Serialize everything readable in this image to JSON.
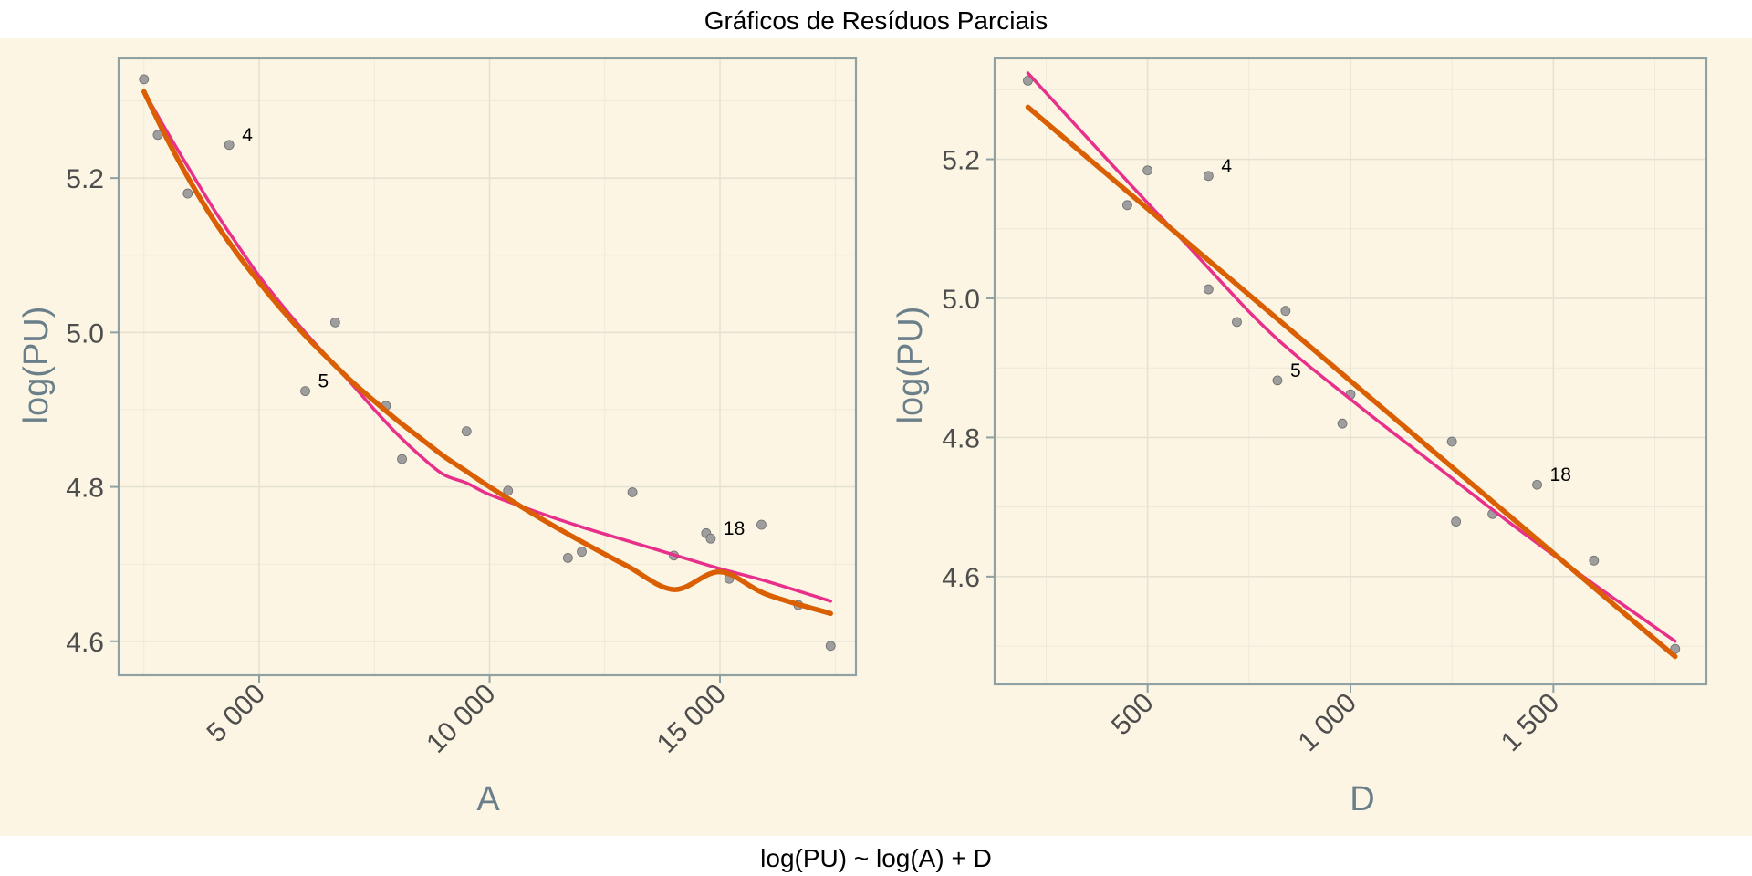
{
  "figure": {
    "title": "Gráficos de Resíduos Parciais",
    "caption": "log(PU) ~ log(A) + D",
    "background_color": "#fcf5e3",
    "point_color": "#9e9e9e",
    "series_colors": {
      "loess": "#e8308a",
      "fitted": "#d95f02"
    }
  },
  "chart_data": [
    {
      "type": "scatter",
      "title": "",
      "xlabel": "A",
      "ylabel": "log(PU)",
      "xlim": [
        1950,
        17950
      ],
      "ylim": [
        4.556,
        5.355
      ],
      "x_ticks": [
        5000,
        10000,
        15000
      ],
      "x_tick_labels": [
        "5 000",
        "10 000",
        "15 000"
      ],
      "y_ticks": [
        4.6,
        4.8,
        5.0,
        5.2
      ],
      "y_tick_labels": [
        "4.6",
        "4.8",
        "5.0",
        "5.2"
      ],
      "grid": true,
      "points": [
        {
          "x": 2500,
          "y": 5.328,
          "label": ""
        },
        {
          "x": 2800,
          "y": 5.256,
          "label": ""
        },
        {
          "x": 3450,
          "y": 5.18,
          "label": ""
        },
        {
          "x": 4350,
          "y": 5.243,
          "label": "4"
        },
        {
          "x": 6000,
          "y": 4.924,
          "label": "5"
        },
        {
          "x": 6650,
          "y": 5.013,
          "label": ""
        },
        {
          "x": 7750,
          "y": 4.905,
          "label": ""
        },
        {
          "x": 8100,
          "y": 4.836,
          "label": ""
        },
        {
          "x": 9500,
          "y": 4.872,
          "label": ""
        },
        {
          "x": 10400,
          "y": 4.795,
          "label": ""
        },
        {
          "x": 11700,
          "y": 4.708,
          "label": ""
        },
        {
          "x": 12000,
          "y": 4.716,
          "label": ""
        },
        {
          "x": 13100,
          "y": 4.793,
          "label": ""
        },
        {
          "x": 14000,
          "y": 4.711,
          "label": ""
        },
        {
          "x": 14700,
          "y": 4.74,
          "label": ""
        },
        {
          "x": 14800,
          "y": 4.733,
          "label": "18"
        },
        {
          "x": 15200,
          "y": 4.681,
          "label": ""
        },
        {
          "x": 15900,
          "y": 4.751,
          "label": ""
        },
        {
          "x": 16700,
          "y": 4.647,
          "label": ""
        },
        {
          "x": 17400,
          "y": 4.594,
          "label": ""
        }
      ],
      "series": [
        {
          "name": "loess",
          "x": [
            2500,
            3000,
            3500,
            4000,
            4500,
            5000,
            5500,
            6000,
            6500,
            7000,
            7500,
            8000,
            8500,
            9000,
            9500,
            10000,
            11000,
            12000,
            13000,
            14000,
            15000,
            16000,
            17400
          ],
          "y": [
            5.312,
            5.26,
            5.21,
            5.161,
            5.116,
            5.073,
            5.035,
            5.0,
            4.967,
            4.934,
            4.9,
            4.868,
            4.84,
            4.816,
            4.805,
            4.79,
            4.768,
            4.748,
            4.73,
            4.712,
            4.694,
            4.678,
            4.652
          ]
        },
        {
          "name": "fitted",
          "x": [
            2500,
            3000,
            3500,
            4000,
            4500,
            5000,
            5500,
            6000,
            6500,
            7000,
            7500,
            8000,
            8500,
            9000,
            9500,
            10000,
            11000,
            12000,
            13000,
            14000,
            15000,
            16000,
            17400
          ],
          "y": [
            5.312,
            5.251,
            5.196,
            5.147,
            5.104,
            5.065,
            5.029,
            4.996,
            4.966,
            4.937,
            4.911,
            4.886,
            4.863,
            4.84,
            4.82,
            4.8,
            4.763,
            4.729,
            4.697,
            4.667,
            4.69,
            4.661,
            4.636
          ]
        }
      ]
    },
    {
      "type": "scatter",
      "title": "",
      "xlabel": "D",
      "ylabel": "log(PU)",
      "xlim": [
        123,
        1877
      ],
      "ylim": [
        4.445,
        5.345
      ],
      "x_ticks": [
        500,
        1000,
        1500
      ],
      "x_tick_labels": [
        "500",
        "1 000",
        "1 500"
      ],
      "y_ticks": [
        4.6,
        4.8,
        5.0,
        5.2
      ],
      "y_tick_labels": [
        "4.6",
        "4.8",
        "5.0",
        "5.2"
      ],
      "grid": true,
      "points": [
        {
          "x": 205,
          "y": 5.313,
          "label": ""
        },
        {
          "x": 450,
          "y": 5.134,
          "label": ""
        },
        {
          "x": 500,
          "y": 5.184,
          "label": ""
        },
        {
          "x": 650,
          "y": 5.176,
          "label": "4"
        },
        {
          "x": 650,
          "y": 5.013,
          "label": ""
        },
        {
          "x": 720,
          "y": 4.966,
          "label": ""
        },
        {
          "x": 820,
          "y": 4.882,
          "label": "5"
        },
        {
          "x": 840,
          "y": 4.982,
          "label": ""
        },
        {
          "x": 980,
          "y": 4.82,
          "label": ""
        },
        {
          "x": 1000,
          "y": 4.862,
          "label": ""
        },
        {
          "x": 1250,
          "y": 4.794,
          "label": ""
        },
        {
          "x": 1260,
          "y": 4.679,
          "label": ""
        },
        {
          "x": 1350,
          "y": 4.69,
          "label": ""
        },
        {
          "x": 1460,
          "y": 4.732,
          "label": "18"
        },
        {
          "x": 1600,
          "y": 4.623,
          "label": ""
        },
        {
          "x": 1800,
          "y": 4.496,
          "label": ""
        }
      ],
      "series": [
        {
          "name": "loess",
          "x": [
            205,
            400,
            600,
            800,
            1000,
            1200,
            1400,
            1600,
            1800
          ],
          "y": [
            5.324,
            5.2,
            5.075,
            4.952,
            4.855,
            4.764,
            4.674,
            4.589,
            4.507
          ]
        },
        {
          "name": "fitted",
          "x": [
            205,
            1800
          ],
          "y": [
            5.275,
            4.485
          ]
        }
      ]
    }
  ]
}
